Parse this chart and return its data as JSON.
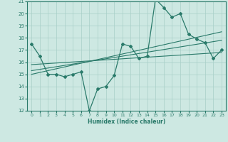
{
  "xlabel": "Humidex (Indice chaleur)",
  "ylabel": "",
  "bg_color": "#cde8e2",
  "line_color": "#2a7a6a",
  "grid_color": "#a8cfc8",
  "xlim": [
    -0.5,
    23.5
  ],
  "ylim": [
    12,
    21
  ],
  "xticks": [
    0,
    1,
    2,
    3,
    4,
    5,
    6,
    7,
    8,
    9,
    10,
    11,
    12,
    13,
    14,
    15,
    16,
    17,
    18,
    19,
    20,
    21,
    22,
    23
  ],
  "yticks": [
    12,
    13,
    14,
    15,
    16,
    17,
    18,
    19,
    20,
    21
  ],
  "data_x": [
    0,
    1,
    2,
    3,
    4,
    5,
    6,
    7,
    8,
    9,
    10,
    11,
    12,
    13,
    14,
    15,
    16,
    17,
    18,
    19,
    20,
    21,
    22,
    23
  ],
  "data_y": [
    17.5,
    16.5,
    15.0,
    15.0,
    14.8,
    15.0,
    15.2,
    12.0,
    13.8,
    14.0,
    14.9,
    17.5,
    17.3,
    16.3,
    16.5,
    21.2,
    20.5,
    19.7,
    20.0,
    18.3,
    17.9,
    17.6,
    16.3,
    17.0
  ],
  "trend1_x": [
    0,
    23
  ],
  "trend1_y": [
    15.3,
    17.8
  ],
  "trend2_x": [
    0,
    23
  ],
  "trend2_y": [
    15.8,
    16.8
  ],
  "trend3_x": [
    0,
    23
  ],
  "trend3_y": [
    15.0,
    18.5
  ]
}
